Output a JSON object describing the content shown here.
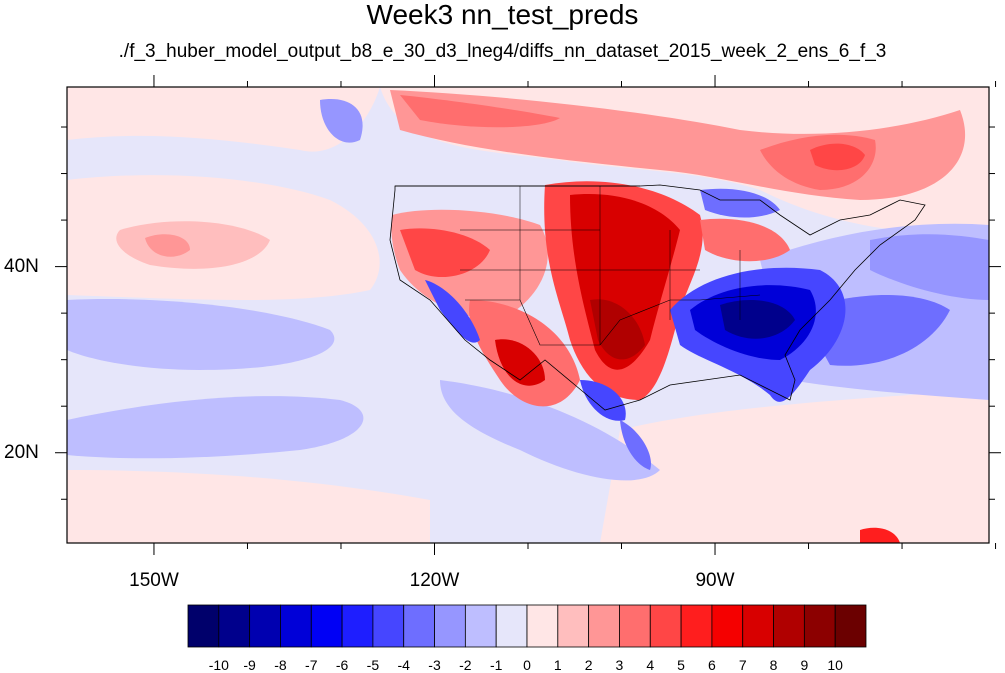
{
  "title": "Week3 nn_test_preds",
  "subtitle": "./f_3_huber_model_output_b8_e_30_d3_lneg4/diffs_nn_dataset_2015_week_2_ens_6_f_3",
  "map": {
    "lon_ticks": [
      {
        "value": -150,
        "label": "150W"
      },
      {
        "value": -120,
        "label": "120W"
      },
      {
        "value": -90,
        "label": "90W"
      }
    ],
    "lat_ticks": [
      {
        "value": 40,
        "label": "40N"
      },
      {
        "value": 20,
        "label": "20N"
      }
    ],
    "lon_range": [
      -159.3,
      -60.7
    ],
    "lat_range": [
      10.3,
      59.3
    ]
  },
  "colorbar": {
    "labels": [
      "-10",
      "-9",
      "-8",
      "-7",
      "-6",
      "-5",
      "-4",
      "-3",
      "-2",
      "-1",
      "0",
      "1",
      "2",
      "3",
      "4",
      "5",
      "6",
      "7",
      "8",
      "9",
      "10"
    ],
    "colors": [
      "#00006b",
      "#00008c",
      "#0000b0",
      "#0000d8",
      "#0000f5",
      "#1e1eff",
      "#4646ff",
      "#6e6eff",
      "#9696ff",
      "#bebeff",
      "#e6e6fa",
      "#ffe6e6",
      "#ffbebe",
      "#ff9696",
      "#ff6e6e",
      "#ff4646",
      "#ff1e1e",
      "#f50000",
      "#d80000",
      "#b00000",
      "#8c0000",
      "#6b0000"
    ]
  }
}
